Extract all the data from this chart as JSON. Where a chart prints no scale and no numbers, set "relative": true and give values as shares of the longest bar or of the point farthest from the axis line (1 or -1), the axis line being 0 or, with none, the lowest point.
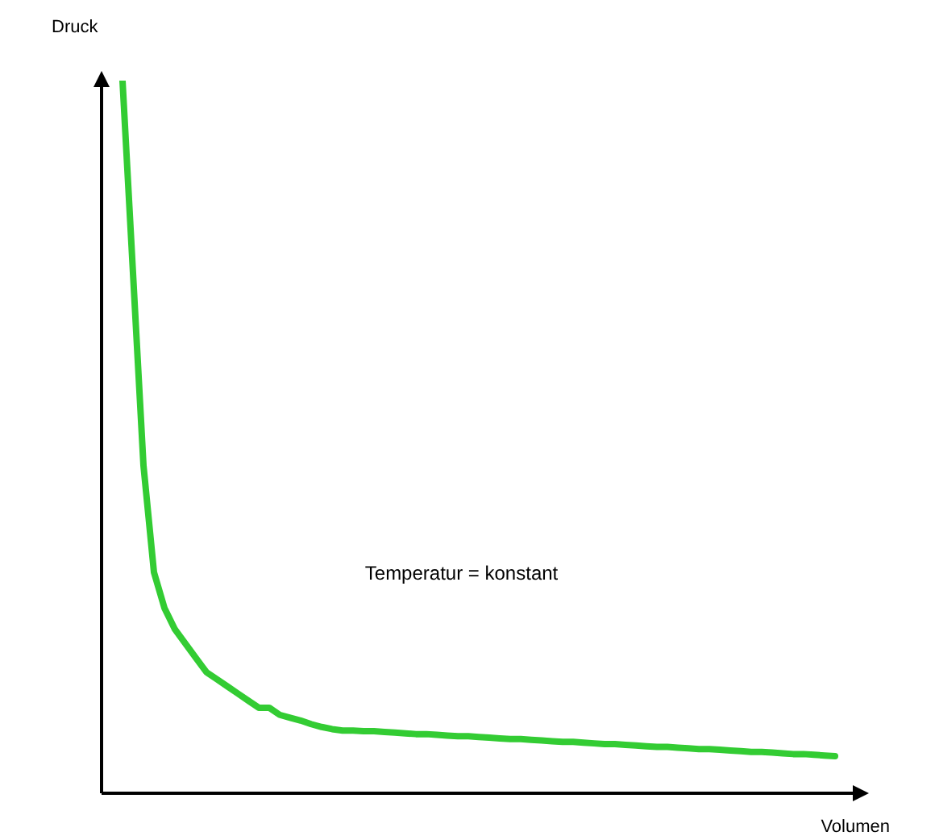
{
  "chart_data": {
    "type": "line",
    "xlabel": "Volumen",
    "ylabel": "Druck",
    "annotations": [
      "Temperatur = konstant"
    ],
    "relative": true,
    "tick_labels": false,
    "legend": false,
    "marker": "none",
    "line_style": "solid",
    "categories": [
      null,
      null,
      null,
      null,
      null,
      null,
      null,
      null,
      null,
      null,
      null,
      null,
      null,
      null,
      null,
      null,
      null,
      null,
      null,
      null,
      null,
      null,
      null,
      null,
      null,
      null,
      null,
      null,
      null,
      null,
      null,
      null,
      null,
      null,
      null,
      null,
      null,
      null,
      null,
      null,
      null,
      null,
      null,
      null,
      null,
      null,
      null,
      null,
      null,
      null,
      null,
      null,
      null,
      null,
      null,
      null,
      null,
      null,
      null,
      null,
      null,
      null,
      null,
      null,
      null,
      null,
      null,
      null,
      null
    ],
    "series": [
      {
        "color": "#33cc33",
        "values": [
          1,
          0.73,
          0.46,
          0.31,
          0.26,
          0.23,
          0.21,
          0.19,
          0.17,
          0.16,
          0.15,
          0.14,
          0.13,
          0.12,
          0.12,
          0.11,
          0.106,
          0.102,
          0.097,
          0.093,
          0.09,
          0.088,
          0.088,
          0.087,
          0.087,
          0.086,
          0.085,
          0.084,
          0.083,
          0.083,
          0.082,
          0.081,
          0.08,
          0.08,
          0.079,
          0.078,
          0.077,
          0.076,
          0.076,
          0.075,
          0.074,
          0.073,
          0.072,
          0.072,
          0.071,
          0.07,
          0.069,
          0.069,
          0.068,
          0.067,
          0.066,
          0.065,
          0.065,
          0.064,
          0.063,
          0.062,
          0.062,
          0.061,
          0.06,
          0.059,
          0.058,
          0.058,
          0.057,
          0.056,
          0.055,
          0.055,
          0.054,
          0.053,
          0.052
        ]
      }
    ]
  }
}
